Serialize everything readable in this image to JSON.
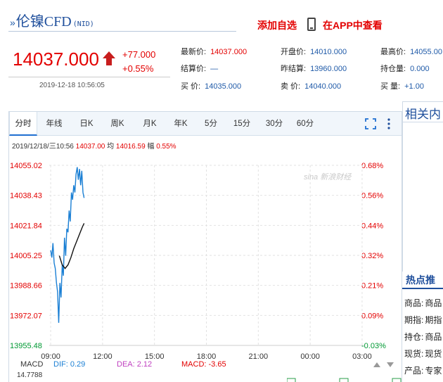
{
  "header": {
    "arrows": "»",
    "name": "伦镍CFD",
    "code": "(NID)",
    "add_watch": "添加自选",
    "app_view": "在APP中查看"
  },
  "quote": {
    "price": "14037.000",
    "change": "+77.000",
    "change_pct": "+0.55%",
    "time": "2019-12-18  10:56:05",
    "fields": [
      {
        "label": "最新价:",
        "value": "14037.000",
        "color": "red"
      },
      {
        "label": "开盘价:",
        "value": "14010.000",
        "color": "blue"
      },
      {
        "label": "最高价:",
        "value": "14055.00",
        "color": "blue"
      },
      {
        "label": "结算价:",
        "value": "—",
        "color": "blue"
      },
      {
        "label": "昨结算:",
        "value": "13960.000",
        "color": "blue"
      },
      {
        "label": "持仓量:",
        "value": "0.000",
        "color": "blue"
      },
      {
        "label": "买    价:",
        "value": "14035.000",
        "color": "blue"
      },
      {
        "label": "卖    价:",
        "value": "14040.000",
        "color": "blue"
      },
      {
        "label": "买    量:",
        "value": "+1.00",
        "color": "blue"
      }
    ]
  },
  "tabs": [
    "分时",
    "年线",
    "日K",
    "周K",
    "月K",
    "年K",
    "5分",
    "15分",
    "30分",
    "60分"
  ],
  "active_tab": "分时",
  "info": {
    "datetime": "2019/12/18/三10:56",
    "price": "14037.00",
    "avg_label": "均",
    "avg": "14016.59",
    "amp_label": "幅",
    "amp": "0.55%"
  },
  "watermark": "sina 新浪财经",
  "chart_data": {
    "type": "line",
    "y_left_ticks": [
      "14055.02",
      "14038.43",
      "14021.84",
      "14005.25",
      "13988.66",
      "13972.07",
      "13955.48"
    ],
    "y_right_ticks": [
      "0.68%",
      "0.56%",
      "0.44%",
      "0.32%",
      "0.21%",
      "0.09%",
      "-0.03%"
    ],
    "x_ticks": [
      "09:00",
      "12:00",
      "15:00",
      "18:00",
      "21:00",
      "00:00",
      "03:00"
    ],
    "ylim": [
      13955.48,
      14055.02
    ],
    "series": [
      {
        "color": "#1a7fd4",
        "x": [
          "09:00",
          "09:04",
          "09:08",
          "09:12",
          "09:16",
          "09:20",
          "09:24",
          "09:28",
          "09:32",
          "09:36",
          "09:40",
          "09:44",
          "09:48",
          "09:52",
          "09:56",
          "10:00",
          "10:04",
          "10:08",
          "10:12",
          "10:16",
          "10:20",
          "10:24",
          "10:28",
          "10:32",
          "10:36",
          "10:40",
          "10:44",
          "10:48",
          "10:52",
          "10:56"
        ],
        "values": [
          14008,
          14004,
          14012,
          14001,
          13998,
          13990,
          13985,
          13968,
          13990,
          13982,
          14000,
          13994,
          14015,
          14005,
          14020,
          14018,
          14030,
          14024,
          14040,
          14036,
          14044,
          14040,
          14050,
          14054,
          14047,
          14053,
          14044,
          14052,
          14040,
          14037
        ]
      },
      {
        "color": "#111111",
        "x": [
          "09:30",
          "09:40",
          "09:50",
          "10:00",
          "10:10",
          "10:20",
          "10:30",
          "10:40",
          "10:50",
          "10:56"
        ],
        "values": [
          14005,
          14000,
          13998,
          14000,
          14004,
          14009,
          14013,
          14017,
          14021,
          14023
        ]
      }
    ]
  },
  "macd": {
    "label": "MACD",
    "dif_label": "DIF:",
    "dif": "0.29",
    "dea_label": "DEA:",
    "dea": "2.12",
    "macd_label": "MACD:",
    "macd": "-3.65",
    "cut_value": "14.7788"
  },
  "sidebar": {
    "related": "相关内",
    "hot": "热点推",
    "items": [
      {
        "label": "商品:",
        "value": "商品"
      },
      {
        "label": "期指:",
        "value": "期指"
      },
      {
        "label": "持仓:",
        "value": "商品"
      },
      {
        "label": "现货:",
        "value": "现货"
      },
      {
        "label": "产品:",
        "value": "专家"
      }
    ]
  }
}
